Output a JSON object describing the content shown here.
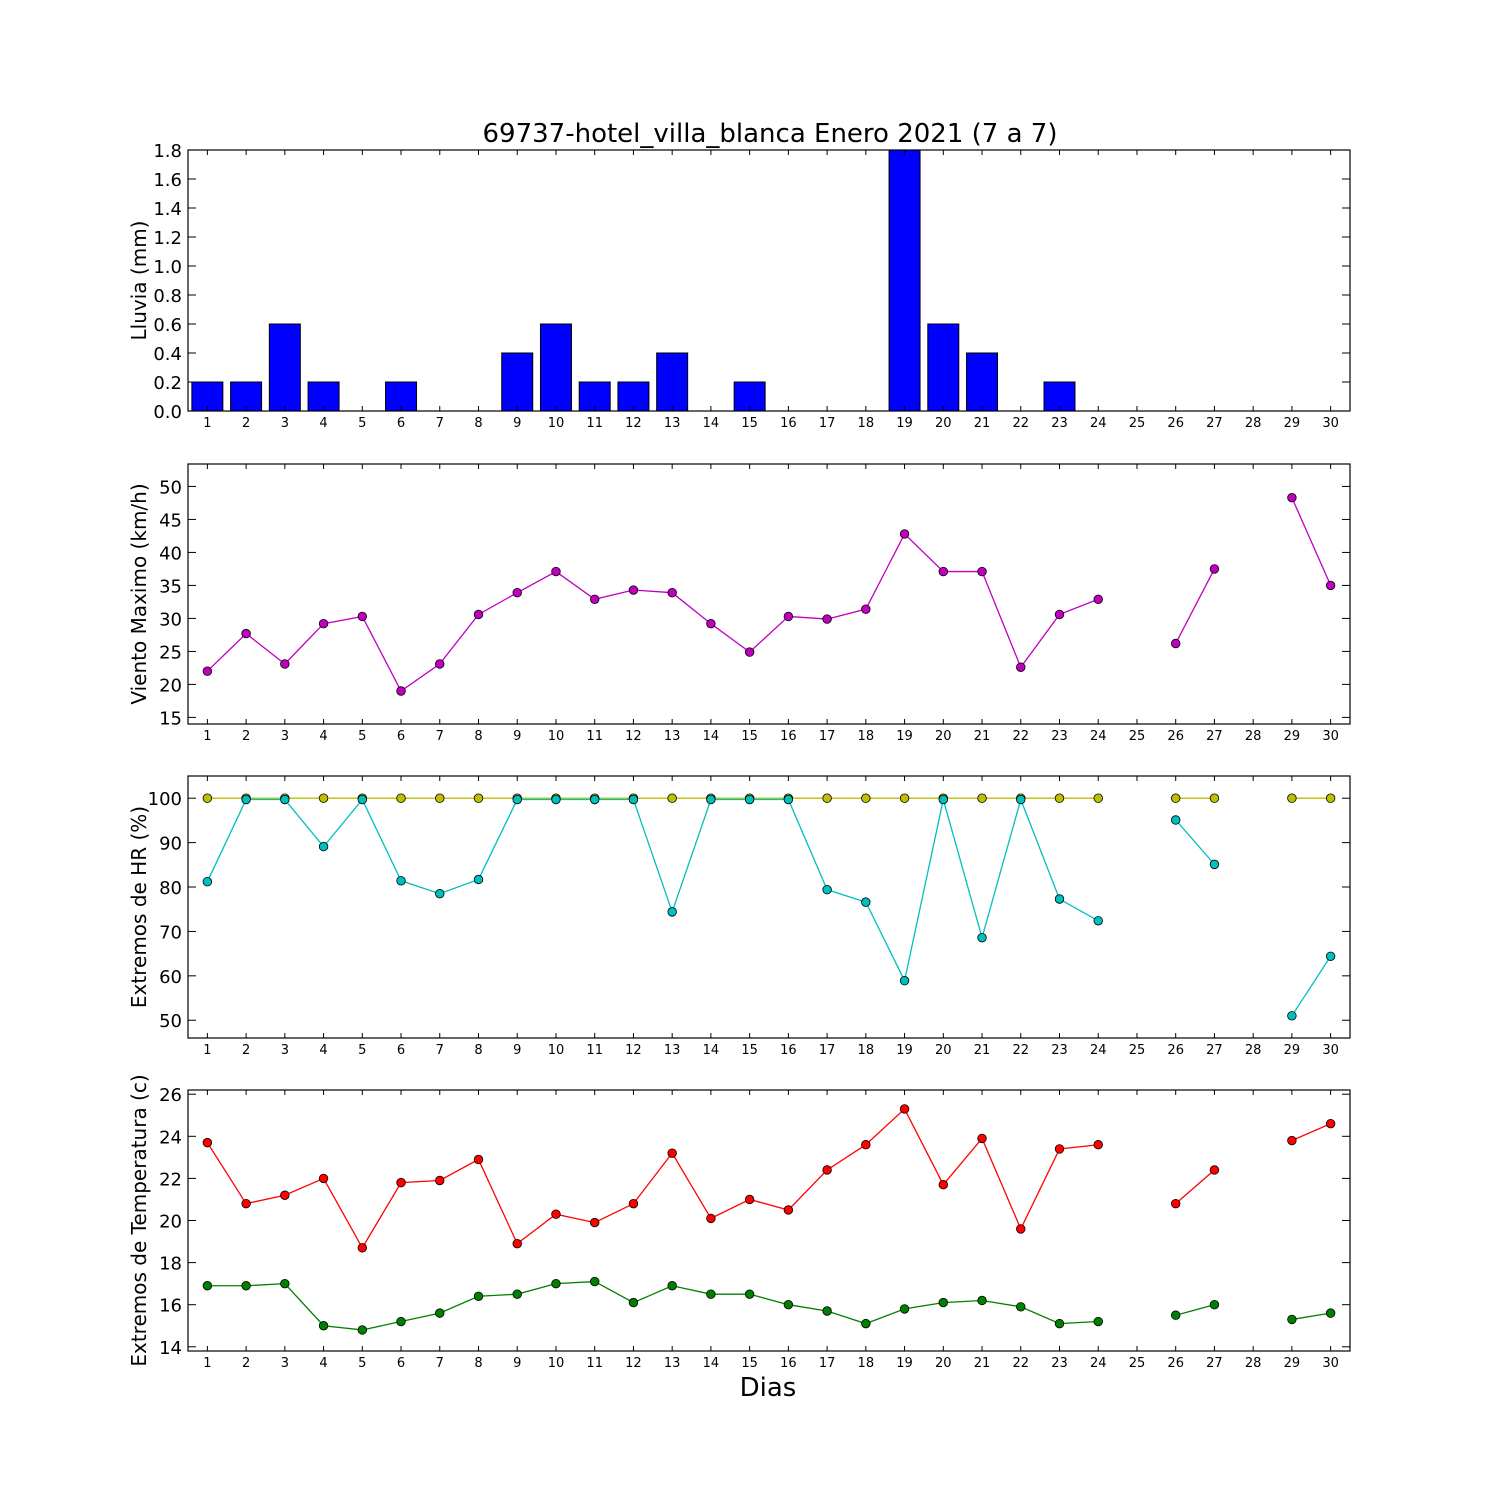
{
  "title": "69737-hotel_villa_blanca Enero 2021  (7 a 7)",
  "xlabel": "Dias",
  "colors": {
    "rain": "#0000ff",
    "wind": "#bf00bf",
    "hr_max": "#bfbf00",
    "hr_min": "#00bfbf",
    "t_max": "#ff0000",
    "t_min": "#008000"
  },
  "chart_data": [
    {
      "type": "bar",
      "ylabel": "Lluvia (mm)",
      "ylim": [
        0,
        1.8
      ],
      "yticks": [
        0.0,
        0.2,
        0.4,
        0.6,
        0.8,
        1.0,
        1.2,
        1.4,
        1.6,
        1.8
      ],
      "ytick_labels": [
        "0.0",
        "0.2",
        "0.4",
        "0.6",
        "0.8",
        "1.0",
        "1.2",
        "1.4",
        "1.6",
        "1.8"
      ],
      "categories": [
        "1",
        "2",
        "3",
        "4",
        "5",
        "6",
        "7",
        "8",
        "9",
        "10",
        "11",
        "12",
        "13",
        "14",
        "15",
        "16",
        "17",
        "18",
        "19",
        "20",
        "21",
        "22",
        "23",
        "24",
        "25",
        "26",
        "27",
        "28",
        "29",
        "30"
      ],
      "series": [
        {
          "color_key": "rain",
          "values": [
            0.2,
            0.2,
            0.6,
            0.2,
            0,
            0.2,
            0,
            0,
            0.4,
            0.6,
            0.2,
            0.2,
            0.4,
            0,
            0.2,
            0,
            0,
            0,
            1.8,
            0.6,
            0.4,
            0,
            0.2,
            0,
            0,
            0,
            0,
            0,
            0,
            0
          ]
        }
      ]
    },
    {
      "type": "line",
      "ylabel": "Viento Maximo (km/h)",
      "ylim": [
        14,
        53.4
      ],
      "yticks": [
        15,
        20,
        25,
        30,
        35,
        40,
        45,
        50
      ],
      "ytick_labels": [
        "15",
        "20",
        "25",
        "30",
        "35",
        "40",
        "45",
        "50"
      ],
      "categories": [
        "1",
        "2",
        "3",
        "4",
        "5",
        "6",
        "7",
        "8",
        "9",
        "10",
        "11",
        "12",
        "13",
        "14",
        "15",
        "16",
        "17",
        "18",
        "19",
        "20",
        "21",
        "22",
        "23",
        "24",
        "25",
        "26",
        "27",
        "28",
        "29",
        "30"
      ],
      "series": [
        {
          "color_key": "wind",
          "values": [
            22,
            27.7,
            23.1,
            29.2,
            30.3,
            19,
            23.1,
            30.6,
            33.9,
            37.1,
            32.9,
            34.3,
            33.9,
            29.2,
            24.9,
            30.3,
            29.9,
            31.4,
            42.8,
            37.1,
            37.1,
            22.6,
            30.6,
            32.9,
            null,
            26.2,
            37.5,
            null,
            48.3,
            35
          ]
        }
      ]
    },
    {
      "type": "line",
      "ylabel": "Extremos de HR (%)",
      "ylim": [
        46,
        105
      ],
      "yticks": [
        50,
        60,
        70,
        80,
        90,
        100
      ],
      "ytick_labels": [
        "50",
        "60",
        "70",
        "80",
        "90",
        "100"
      ],
      "categories": [
        "1",
        "2",
        "3",
        "4",
        "5",
        "6",
        "7",
        "8",
        "9",
        "10",
        "11",
        "12",
        "13",
        "14",
        "15",
        "16",
        "17",
        "18",
        "19",
        "20",
        "21",
        "22",
        "23",
        "24",
        "25",
        "26",
        "27",
        "28",
        "29",
        "30"
      ],
      "series": [
        {
          "color_key": "hr_max",
          "values": [
            100,
            100,
            100,
            100,
            100,
            100,
            100,
            100,
            100,
            100,
            100,
            100,
            100,
            100,
            100,
            100,
            100,
            100,
            100,
            100,
            100,
            100,
            100,
            100,
            null,
            100,
            100,
            null,
            100,
            100
          ]
        },
        {
          "color_key": "hr_min",
          "values": [
            81.2,
            99.7,
            99.7,
            89.1,
            99.7,
            81.4,
            78.5,
            81.7,
            99.7,
            99.7,
            99.7,
            99.7,
            74.4,
            99.7,
            99.7,
            99.7,
            79.4,
            76.6,
            58.9,
            99.7,
            68.6,
            99.7,
            77.3,
            72.4,
            null,
            95.1,
            85.1,
            null,
            51,
            64.4
          ]
        }
      ]
    },
    {
      "type": "line",
      "ylabel": "Extremos de Temperatura (c)",
      "ylim": [
        13.8,
        26.2
      ],
      "yticks": [
        14,
        16,
        18,
        20,
        22,
        24,
        26
      ],
      "ytick_labels": [
        "14",
        "16",
        "18",
        "20",
        "22",
        "24",
        "26"
      ],
      "categories": [
        "1",
        "2",
        "3",
        "4",
        "5",
        "6",
        "7",
        "8",
        "9",
        "10",
        "11",
        "12",
        "13",
        "14",
        "15",
        "16",
        "17",
        "18",
        "19",
        "20",
        "21",
        "22",
        "23",
        "24",
        "25",
        "26",
        "27",
        "28",
        "29",
        "30"
      ],
      "series": [
        {
          "color_key": "t_max",
          "values": [
            23.7,
            20.8,
            21.2,
            22,
            18.7,
            21.8,
            21.9,
            22.9,
            18.9,
            20.3,
            19.9,
            20.8,
            23.2,
            20.1,
            21,
            20.5,
            22.4,
            23.6,
            25.3,
            21.7,
            23.9,
            19.6,
            23.4,
            23.6,
            null,
            20.8,
            22.4,
            null,
            23.8,
            24.6
          ]
        },
        {
          "color_key": "t_min",
          "values": [
            16.9,
            16.9,
            17,
            15,
            14.8,
            15.2,
            15.6,
            16.4,
            16.5,
            17,
            17.1,
            16.1,
            16.9,
            16.5,
            16.5,
            16,
            15.7,
            15.1,
            15.8,
            16.1,
            16.2,
            15.9,
            15.1,
            15.2,
            null,
            15.5,
            16,
            null,
            15.3,
            15.6
          ]
        }
      ]
    }
  ]
}
